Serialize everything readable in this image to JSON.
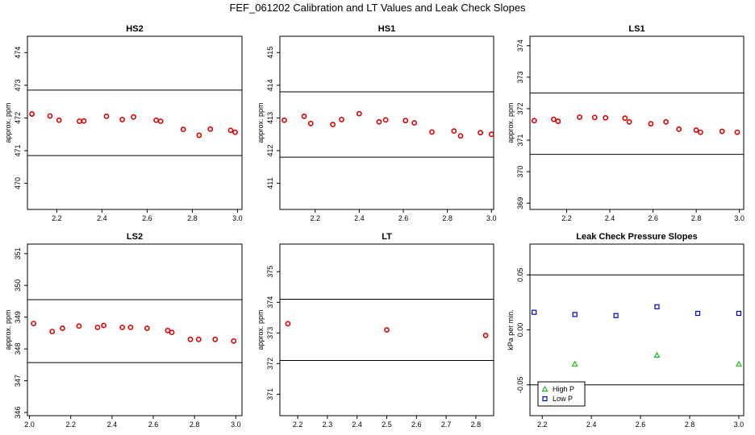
{
  "page": {
    "title": "FEF_061202  Calibration and LT Values and Leak Check Slopes"
  },
  "chart_data": [
    {
      "type": "scatter",
      "title": "HS2",
      "ylabel": "approx. ppm",
      "xlim": [
        2.07,
        3.02
      ],
      "ylim": [
        469.2,
        474.5
      ],
      "xticks": [
        2.2,
        2.4,
        2.6,
        2.8,
        3.0
      ],
      "xtick_labels": [
        "2.2",
        "2.4",
        "2.6",
        "2.8",
        "3.0"
      ],
      "yticks": [
        470,
        471,
        472,
        473,
        474
      ],
      "hlines": [
        472.85,
        470.85
      ],
      "series": [
        {
          "color": "#dd0000",
          "marker": "circle",
          "x": [
            2.09,
            2.17,
            2.21,
            2.3,
            2.32,
            2.42,
            2.49,
            2.54,
            2.64,
            2.66,
            2.76,
            2.83,
            2.88,
            2.97,
            2.99
          ],
          "y": [
            472.12,
            472.06,
            471.93,
            471.9,
            471.91,
            472.05,
            471.95,
            472.03,
            471.93,
            471.9,
            471.65,
            471.47,
            471.66,
            471.62,
            471.56
          ]
        }
      ]
    },
    {
      "type": "scatter",
      "title": "HS1",
      "ylabel": "approx. ppm",
      "xlim": [
        2.04,
        3.01
      ],
      "ylim": [
        410.2,
        415.5
      ],
      "xticks": [
        2.2,
        2.4,
        2.6,
        2.8,
        3.0
      ],
      "xtick_labels": [
        "2.2",
        "2.4",
        "2.6",
        "2.8",
        "3.0"
      ],
      "yticks": [
        411,
        412,
        413,
        414,
        415
      ],
      "hlines": [
        413.8,
        411.8
      ],
      "series": [
        {
          "color": "#dd0000",
          "marker": "circle",
          "x": [
            2.06,
            2.15,
            2.18,
            2.28,
            2.32,
            2.4,
            2.49,
            2.52,
            2.61,
            2.65,
            2.73,
            2.83,
            2.86,
            2.95,
            3.0
          ],
          "y": [
            412.93,
            413.05,
            412.83,
            412.8,
            412.95,
            413.13,
            412.88,
            412.94,
            412.92,
            412.85,
            412.57,
            412.6,
            412.45,
            412.55,
            412.5
          ]
        }
      ]
    },
    {
      "type": "scatter",
      "title": "LS1",
      "ylabel": "approx. ppm",
      "xlim": [
        2.03,
        3.02
      ],
      "ylim": [
        368.8,
        374.3
      ],
      "xticks": [
        2.2,
        2.4,
        2.6,
        2.8,
        3.0
      ],
      "xtick_labels": [
        "2.2",
        "2.4",
        "2.6",
        "2.8",
        "3.0"
      ],
      "yticks": [
        369,
        370,
        371,
        372,
        373,
        374
      ],
      "hlines": [
        372.5,
        370.55
      ],
      "series": [
        {
          "color": "#dd0000",
          "marker": "circle",
          "x": [
            2.05,
            2.14,
            2.16,
            2.26,
            2.33,
            2.38,
            2.47,
            2.49,
            2.59,
            2.66,
            2.72,
            2.8,
            2.82,
            2.92,
            2.99
          ],
          "y": [
            371.62,
            371.66,
            371.6,
            371.73,
            371.72,
            371.71,
            371.7,
            371.58,
            371.52,
            371.58,
            371.35,
            371.32,
            371.25,
            371.28,
            371.25
          ]
        }
      ]
    },
    {
      "type": "scatter",
      "title": "LS2",
      "ylabel": "approx. ppm",
      "xlim": [
        1.99,
        3.03
      ],
      "ylim": [
        345.9,
        351.3
      ],
      "xticks": [
        2.0,
        2.2,
        2.4,
        2.6,
        2.8,
        3.0
      ],
      "xtick_labels": [
        "2.0",
        "2.2",
        "2.4",
        "2.6",
        "2.8",
        "3.0"
      ],
      "yticks": [
        346,
        347,
        348,
        349,
        350,
        351
      ],
      "hlines": [
        349.55,
        347.57
      ],
      "series": [
        {
          "color": "#dd0000",
          "marker": "circle",
          "x": [
            2.02,
            2.11,
            2.16,
            2.24,
            2.33,
            2.36,
            2.45,
            2.49,
            2.57,
            2.67,
            2.69,
            2.78,
            2.82,
            2.9,
            2.99
          ],
          "y": [
            348.8,
            348.55,
            348.65,
            348.72,
            348.68,
            348.74,
            348.68,
            348.68,
            348.65,
            348.58,
            348.52,
            348.3,
            348.3,
            348.3,
            348.25
          ]
        }
      ]
    },
    {
      "type": "scatter",
      "title": "LT",
      "ylabel": "approx. ppm",
      "xlim": [
        2.14,
        2.86
      ],
      "ylim": [
        370.3,
        375.9
      ],
      "xticks": [
        2.2,
        2.3,
        2.4,
        2.5,
        2.6,
        2.7,
        2.8
      ],
      "xtick_labels": [
        "2.2",
        "2.3",
        "2.4",
        "2.5",
        "2.6",
        "2.7",
        "2.8"
      ],
      "yticks": [
        371,
        372,
        373,
        374,
        375
      ],
      "hlines": [
        374.1,
        372.1
      ],
      "series": [
        {
          "color": "#dd0000",
          "marker": "circle",
          "x": [
            2.167,
            2.5,
            2.833
          ],
          "y": [
            373.3,
            373.1,
            372.92
          ]
        }
      ]
    },
    {
      "type": "scatter",
      "title": "Leak Check Pressure Slopes",
      "ylabel": "kPa per min.",
      "xlim": [
        2.15,
        3.02
      ],
      "ylim": [
        -0.078,
        0.078
      ],
      "xticks": [
        2.2,
        2.4,
        2.6,
        2.8,
        3.0
      ],
      "xtick_labels": [
        "2.2",
        "2.4",
        "2.6",
        "2.8",
        "3.0"
      ],
      "yticks": [
        -0.05,
        0.0,
        0.05
      ],
      "ytick_labels": [
        "-0.05",
        "0.00",
        "0.05"
      ],
      "hlines": [
        0.05,
        -0.05
      ],
      "legend": {
        "placement": "bottom-left"
      },
      "series": [
        {
          "name": "High P",
          "color": "#22bb22",
          "marker": "triangle",
          "x": [
            2.333,
            2.667,
            3.0
          ],
          "y": [
            -0.031,
            -0.023,
            -0.031
          ]
        },
        {
          "name": "Low P",
          "color": "#0000cc",
          "marker": "square",
          "x": [
            2.167,
            2.333,
            2.5,
            2.667,
            2.833,
            3.0
          ],
          "y": [
            0.016,
            0.014,
            0.013,
            0.021,
            0.015,
            0.015
          ]
        }
      ]
    }
  ]
}
